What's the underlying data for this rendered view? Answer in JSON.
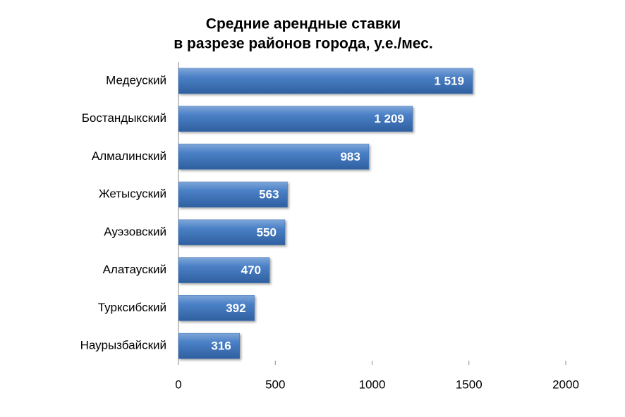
{
  "chart_data": {
    "type": "bar",
    "orientation": "horizontal",
    "title": [
      "Средние арендные ставки",
      "в разрезе районов города, у.е./мес."
    ],
    "categories": [
      "Медеуский",
      "Бостандыкский",
      "Алмалинский",
      "Жетысуский",
      "Ауэзовский",
      "Алатауский",
      "Турксибский",
      "Наурызбайский"
    ],
    "values": [
      1519,
      1209,
      983,
      563,
      550,
      470,
      392,
      316
    ],
    "value_labels": [
      "1 519",
      "1 209",
      "983",
      "563",
      "550",
      "470",
      "392",
      "316"
    ],
    "color": "#3f74b9",
    "xlim": [
      0,
      2000
    ],
    "xticks": [
      0,
      500,
      1000,
      1500,
      2000
    ],
    "grid": false
  }
}
